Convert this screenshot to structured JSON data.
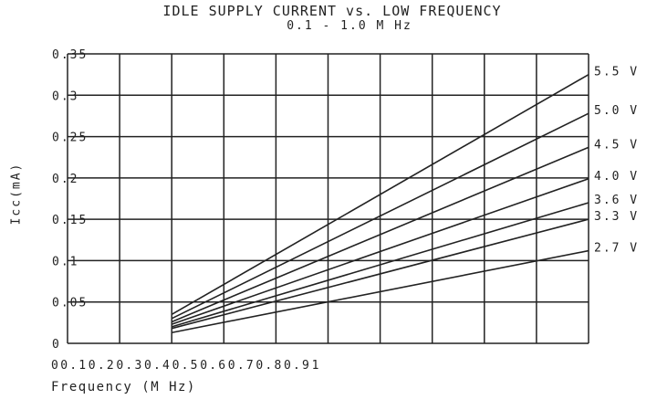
{
  "chart_data": {
    "type": "line",
    "title": "IDLE SUPPLY CURRENT vs. LOW FREQUENCY",
    "subtitle": "0.1 - 1.0 M Hz",
    "xlabel": "Frequency (M Hz)",
    "ylabel": "Icc(mA)",
    "x_tick_labels": [
      "0",
      "0.1",
      "0.2",
      "0.3",
      "0.4",
      "0.5",
      "0.6",
      "0.7",
      "0.8",
      "0.9",
      "1"
    ],
    "y_tick_labels": [
      "0",
      "0.05",
      "0.1",
      "0.15",
      "0.2",
      "0.25",
      "0.3",
      "0.35"
    ],
    "xlim": [
      0,
      1
    ],
    "ylim": [
      0,
      0.35
    ],
    "grid": true,
    "legend": "right-end labels",
    "series": [
      {
        "name": "5.5 V",
        "x": [
          0.2,
          1.0
        ],
        "y": [
          0.035,
          0.325
        ]
      },
      {
        "name": "5.0 V",
        "x": [
          0.2,
          1.0
        ],
        "y": [
          0.03,
          0.278
        ]
      },
      {
        "name": "4.5 V",
        "x": [
          0.2,
          1.0
        ],
        "y": [
          0.026,
          0.237
        ]
      },
      {
        "name": "4.0 V",
        "x": [
          0.2,
          1.0
        ],
        "y": [
          0.023,
          0.199
        ]
      },
      {
        "name": "3.6 V",
        "x": [
          0.2,
          1.0
        ],
        "y": [
          0.02,
          0.17
        ]
      },
      {
        "name": "3.3 V",
        "x": [
          0.2,
          1.0
        ],
        "y": [
          0.018,
          0.15
        ]
      },
      {
        "name": "2.7 V",
        "x": [
          0.2,
          1.0
        ],
        "y": [
          0.013,
          0.112
        ]
      }
    ]
  }
}
